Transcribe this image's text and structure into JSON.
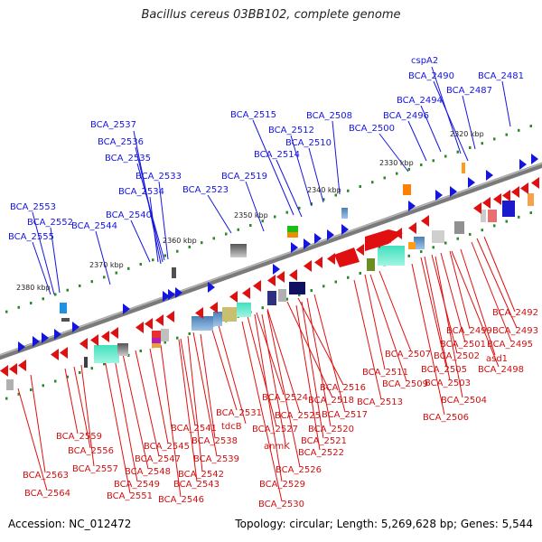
{
  "title": "Bacillus cereus 03BB102, complete genome",
  "footer": {
    "accession": "Accession: NC_012472",
    "summary": "Topology: circular; Length: 5,269,628 bp; Genes: 5,544"
  },
  "colors": {
    "forward": "#1515e0",
    "reverse": "#e01010",
    "backbone": "#808080",
    "tick": "#2a8a2a"
  },
  "ticks": [
    {
      "text": "2320 kbp"
    },
    {
      "text": "2330 kbp"
    },
    {
      "text": "2340 kbp"
    },
    {
      "text": "2350 kbp"
    },
    {
      "text": "2360 kbp"
    },
    {
      "text": "2370 kbp"
    },
    {
      "text": "2380 kbp"
    }
  ],
  "top_labels": [
    {
      "text": "cspA2"
    },
    {
      "text": "BCA_2490"
    },
    {
      "text": "BCA_2481"
    },
    {
      "text": "BCA_2487"
    },
    {
      "text": "BCA_2494"
    },
    {
      "text": "BCA_2496"
    },
    {
      "text": "BCA_2508"
    },
    {
      "text": "BCA_2500"
    },
    {
      "text": "BCA_2515"
    },
    {
      "text": "BCA_2512"
    },
    {
      "text": "BCA_2510"
    },
    {
      "text": "BCA_2514"
    },
    {
      "text": "BCA_2537"
    },
    {
      "text": "BCA_2536"
    },
    {
      "text": "BCA_2535"
    },
    {
      "text": "BCA_2533"
    },
    {
      "text": "BCA_2534"
    },
    {
      "text": "BCA_2519"
    },
    {
      "text": "BCA_2523"
    },
    {
      "text": "BCA_2540"
    },
    {
      "text": "BCA_2553"
    },
    {
      "text": "BCA_2552"
    },
    {
      "text": "BCA_2544"
    },
    {
      "text": "BCA_2555"
    }
  ],
  "bottom_labels": [
    {
      "text": "BCA_2492"
    },
    {
      "text": "BCA_2493"
    },
    {
      "text": "BCA_2499"
    },
    {
      "text": "BCA_2495"
    },
    {
      "text": "BCA_2501"
    },
    {
      "text": "BCA_2507"
    },
    {
      "text": "BCA_2502"
    },
    {
      "text": "asd1"
    },
    {
      "text": "BCA_2511"
    },
    {
      "text": "BCA_2505"
    },
    {
      "text": "BCA_2498"
    },
    {
      "text": "BCA_2509"
    },
    {
      "text": "BCA_2503"
    },
    {
      "text": "BCA_2516"
    },
    {
      "text": "BCA_2513"
    },
    {
      "text": "BCA_2504"
    },
    {
      "text": "BCA_2524"
    },
    {
      "text": "BCA_2518"
    },
    {
      "text": "BCA_2531"
    },
    {
      "text": "BCA_2525"
    },
    {
      "text": "BCA_2517"
    },
    {
      "text": "BCA_2506"
    },
    {
      "text": "tdcB"
    },
    {
      "text": "BCA_2527"
    },
    {
      "text": "BCA_2520"
    },
    {
      "text": "BCA_2541"
    },
    {
      "text": "BCA_2521"
    },
    {
      "text": "BCA_2559"
    },
    {
      "text": "BCA_2538"
    },
    {
      "text": "anmK"
    },
    {
      "text": "BCA_2522"
    },
    {
      "text": "BCA_2556"
    },
    {
      "text": "BCA_2545"
    },
    {
      "text": "BCA_2547"
    },
    {
      "text": "BCA_2539"
    },
    {
      "text": "BCA_2557"
    },
    {
      "text": "BCA_2548"
    },
    {
      "text": "BCA_2526"
    },
    {
      "text": "BCA_2563"
    },
    {
      "text": "BCA_2542"
    },
    {
      "text": "BCA_2549"
    },
    {
      "text": "BCA_2543"
    },
    {
      "text": "BCA_2529"
    },
    {
      "text": "BCA_2564"
    },
    {
      "text": "BCA_2551"
    },
    {
      "text": "BCA_2546"
    },
    {
      "text": "BCA_2530"
    }
  ]
}
